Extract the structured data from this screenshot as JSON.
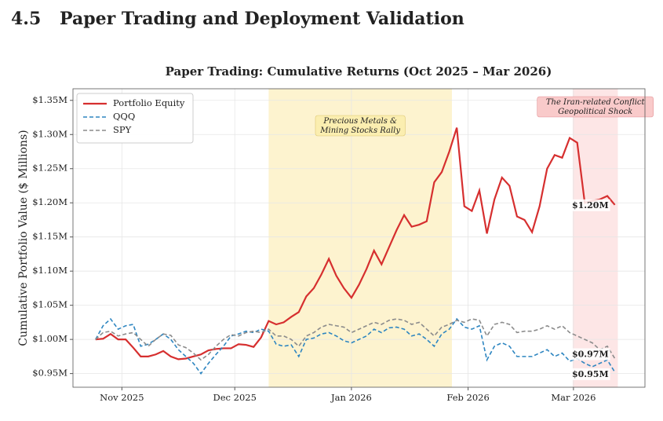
{
  "heading": {
    "number": "4.5",
    "title": "Paper Trading and Deployment Validation"
  },
  "chart_data": {
    "type": "line",
    "title": "Paper Trading: Cumulative Returns (Oct 2025 – Mar 2026)",
    "y_label": "Cumulative Portfolio Value ($ Millions)",
    "x": [
      24,
      26,
      28,
      30,
      32,
      34,
      36,
      38,
      40,
      42,
      44,
      46,
      48,
      50,
      52,
      54,
      56,
      58,
      60,
      62,
      64,
      66,
      68,
      70,
      72,
      74,
      76,
      78,
      80,
      82,
      84,
      86,
      88,
      90,
      92,
      94,
      96,
      98,
      100,
      102,
      104,
      106,
      108,
      110,
      112,
      114,
      116,
      118,
      120,
      122,
      124,
      126,
      128,
      130,
      132,
      134,
      136,
      138,
      140,
      142,
      144,
      146,
      148,
      150,
      152,
      154,
      156,
      158,
      160,
      162
    ],
    "xlim": [
      18,
      170
    ],
    "xticks": [
      {
        "value": 31,
        "label": "Nov 2025"
      },
      {
        "value": 61,
        "label": "Dec 2025"
      },
      {
        "value": 92,
        "label": "Jan 2026"
      },
      {
        "value": 123,
        "label": "Feb 2026"
      },
      {
        "value": 151,
        "label": "Mar 2026"
      }
    ],
    "ylim": [
      0.93,
      1.367
    ],
    "yticks": [
      {
        "value": 0.95,
        "label": "$0.95M"
      },
      {
        "value": 1.0,
        "label": "$1.00M"
      },
      {
        "value": 1.05,
        "label": "$1.05M"
      },
      {
        "value": 1.1,
        "label": "$1.10M"
      },
      {
        "value": 1.15,
        "label": "$1.15M"
      },
      {
        "value": 1.2,
        "label": "$1.20M"
      },
      {
        "value": 1.25,
        "label": "$1.25M"
      },
      {
        "value": 1.3,
        "label": "$1.30M"
      },
      {
        "value": 1.35,
        "label": "$1.35M"
      }
    ],
    "grid": true,
    "legend": "upper left",
    "series": [
      {
        "name": "Portfolio Equity",
        "color": "#d62f2f",
        "dash": false,
        "last_label": "$1.20M",
        "values": [
          1.0,
          1.001,
          1.008,
          1.0,
          1.0,
          0.988,
          0.975,
          0.975,
          0.978,
          0.983,
          0.975,
          0.971,
          0.972,
          0.975,
          0.978,
          0.984,
          0.986,
          0.987,
          0.987,
          0.993,
          0.992,
          0.989,
          1.003,
          1.027,
          1.022,
          1.025,
          1.033,
          1.04,
          1.063,
          1.075,
          1.095,
          1.118,
          1.093,
          1.075,
          1.061,
          1.08,
          1.103,
          1.13,
          1.11,
          1.135,
          1.16,
          1.182,
          1.165,
          1.168,
          1.173,
          1.23,
          1.245,
          1.275,
          1.31,
          1.195,
          1.188,
          1.218,
          1.155,
          1.205,
          1.237,
          1.225,
          1.18,
          1.175,
          1.157,
          1.195,
          1.25,
          1.27,
          1.266,
          1.295,
          1.288,
          1.2,
          1.203,
          1.205,
          1.21,
          1.197
        ]
      },
      {
        "name": "QQQ",
        "color": "#2e86c1",
        "dash": true,
        "last_label": "$0.95M",
        "values": [
          1.0,
          1.02,
          1.03,
          1.015,
          1.02,
          1.022,
          0.99,
          0.993,
          1.0,
          1.008,
          1.0,
          0.985,
          0.975,
          0.965,
          0.95,
          0.965,
          0.978,
          0.99,
          1.005,
          1.008,
          1.012,
          1.01,
          1.015,
          1.012,
          0.993,
          0.99,
          0.992,
          0.975,
          1.0,
          1.002,
          1.008,
          1.01,
          1.005,
          0.998,
          0.995,
          1.0,
          1.005,
          1.015,
          1.01,
          1.017,
          1.018,
          1.015,
          1.005,
          1.008,
          1.0,
          0.99,
          1.008,
          1.015,
          1.03,
          1.018,
          1.015,
          1.02,
          0.97,
          0.99,
          0.995,
          0.99,
          0.975,
          0.975,
          0.975,
          0.98,
          0.985,
          0.975,
          0.98,
          0.968,
          0.972,
          0.965,
          0.96,
          0.965,
          0.97,
          0.952
        ]
      },
      {
        "name": "SPY",
        "color": "#8c8c8c",
        "dash": true,
        "last_label": "$0.97M",
        "values": [
          1.0,
          1.01,
          1.012,
          1.005,
          1.008,
          1.01,
          1.0,
          0.99,
          1.0,
          1.008,
          1.006,
          0.992,
          0.988,
          0.98,
          0.97,
          0.978,
          0.99,
          1.0,
          1.007,
          1.005,
          1.01,
          1.012,
          1.01,
          1.015,
          1.005,
          1.005,
          1.0,
          0.99,
          1.005,
          1.01,
          1.018,
          1.022,
          1.02,
          1.018,
          1.01,
          1.015,
          1.02,
          1.025,
          1.022,
          1.028,
          1.03,
          1.028,
          1.022,
          1.025,
          1.015,
          1.005,
          1.018,
          1.022,
          1.028,
          1.025,
          1.03,
          1.028,
          1.005,
          1.022,
          1.025,
          1.022,
          1.01,
          1.012,
          1.012,
          1.015,
          1.02,
          1.015,
          1.02,
          1.01,
          1.005,
          1.0,
          0.995,
          0.985,
          0.99,
          0.972
        ]
      }
    ],
    "spans": [
      {
        "label": "Precious Metals &\nMining Stocks Rally",
        "xlim": [
          70,
          118.7
        ],
        "color": "#fdf3cf",
        "text_color": "#b08a00",
        "box_color": "#fbeeb0"
      },
      {
        "label": "The Iran-related Conflict\nGeopolitical Shock",
        "xlim": [
          150.8,
          162.8
        ],
        "color": "#fde6e6",
        "text_color": "#c0202a",
        "box_color": "#f9caca"
      }
    ]
  }
}
